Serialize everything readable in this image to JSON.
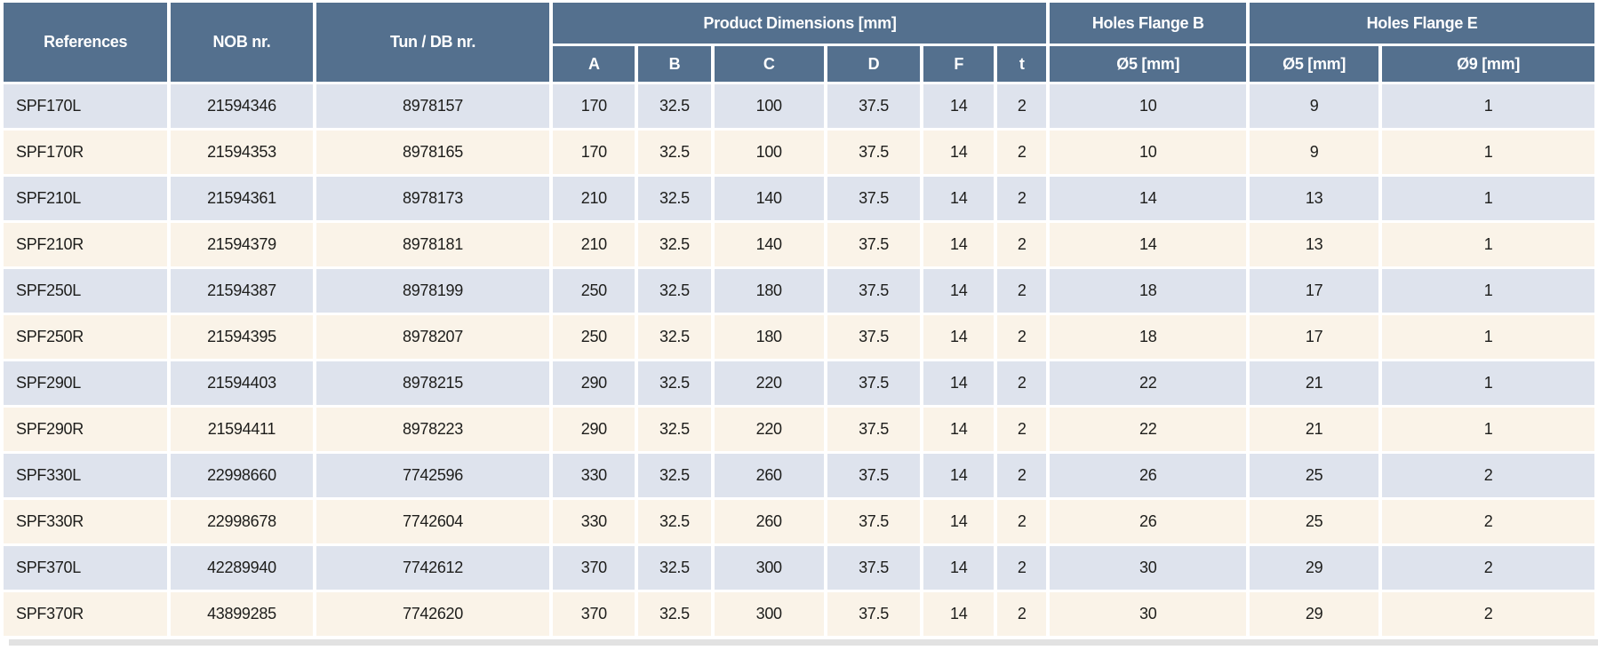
{
  "colors": {
    "header_bg": "#54708e",
    "row_blue": "#dee3ed",
    "row_cream": "#faf3e8",
    "header_text": "#ffffff",
    "cell_text": "#1d1d1b",
    "gap": "#ffffff",
    "bottom_strip": "#e2e2e2"
  },
  "table": {
    "column_groups": [
      {
        "label": "References"
      },
      {
        "label": "NOB nr."
      },
      {
        "label": "Tun / DB nr."
      },
      {
        "label": "Product Dimensions [mm]",
        "sub": [
          "A",
          "B",
          "C",
          "D",
          "F",
          "t"
        ]
      },
      {
        "label": "Holes Flange B",
        "sub": [
          "Ø5 [mm]"
        ]
      },
      {
        "label": "Holes Flange E",
        "sub": [
          "Ø5 [mm]",
          "Ø9 [mm]"
        ]
      }
    ],
    "rows": [
      [
        "SPF170L",
        "21594346",
        "8978157",
        "170",
        "32.5",
        "100",
        "37.5",
        "14",
        "2",
        "10",
        "9",
        "1"
      ],
      [
        "SPF170R",
        "21594353",
        "8978165",
        "170",
        "32.5",
        "100",
        "37.5",
        "14",
        "2",
        "10",
        "9",
        "1"
      ],
      [
        "SPF210L",
        "21594361",
        "8978173",
        "210",
        "32.5",
        "140",
        "37.5",
        "14",
        "2",
        "14",
        "13",
        "1"
      ],
      [
        "SPF210R",
        "21594379",
        "8978181",
        "210",
        "32.5",
        "140",
        "37.5",
        "14",
        "2",
        "14",
        "13",
        "1"
      ],
      [
        "SPF250L",
        "21594387",
        "8978199",
        "250",
        "32.5",
        "180",
        "37.5",
        "14",
        "2",
        "18",
        "17",
        "1"
      ],
      [
        "SPF250R",
        "21594395",
        "8978207",
        "250",
        "32.5",
        "180",
        "37.5",
        "14",
        "2",
        "18",
        "17",
        "1"
      ],
      [
        "SPF290L",
        "21594403",
        "8978215",
        "290",
        "32.5",
        "220",
        "37.5",
        "14",
        "2",
        "22",
        "21",
        "1"
      ],
      [
        "SPF290R",
        "21594411",
        "8978223",
        "290",
        "32.5",
        "220",
        "37.5",
        "14",
        "2",
        "22",
        "21",
        "1"
      ],
      [
        "SPF330L",
        "22998660",
        "7742596",
        "330",
        "32.5",
        "260",
        "37.5",
        "14",
        "2",
        "26",
        "25",
        "2"
      ],
      [
        "SPF330R",
        "22998678",
        "7742604",
        "330",
        "32.5",
        "260",
        "37.5",
        "14",
        "2",
        "26",
        "25",
        "2"
      ],
      [
        "SPF370L",
        "42289940",
        "7742612",
        "370",
        "32.5",
        "300",
        "37.5",
        "14",
        "2",
        "30",
        "29",
        "2"
      ],
      [
        "SPF370R",
        "43899285",
        "7742620",
        "370",
        "32.5",
        "300",
        "37.5",
        "14",
        "2",
        "30",
        "29",
        "2"
      ]
    ],
    "cell_names": [
      "reference-cell",
      "nob-nr-cell",
      "tun-db-nr-cell",
      "dim-a-cell",
      "dim-b-cell",
      "dim-c-cell",
      "dim-d-cell",
      "dim-f-cell",
      "dim-t-cell",
      "holes-b-d5-cell",
      "holes-e-d5-cell",
      "holes-e-d9-cell"
    ]
  }
}
